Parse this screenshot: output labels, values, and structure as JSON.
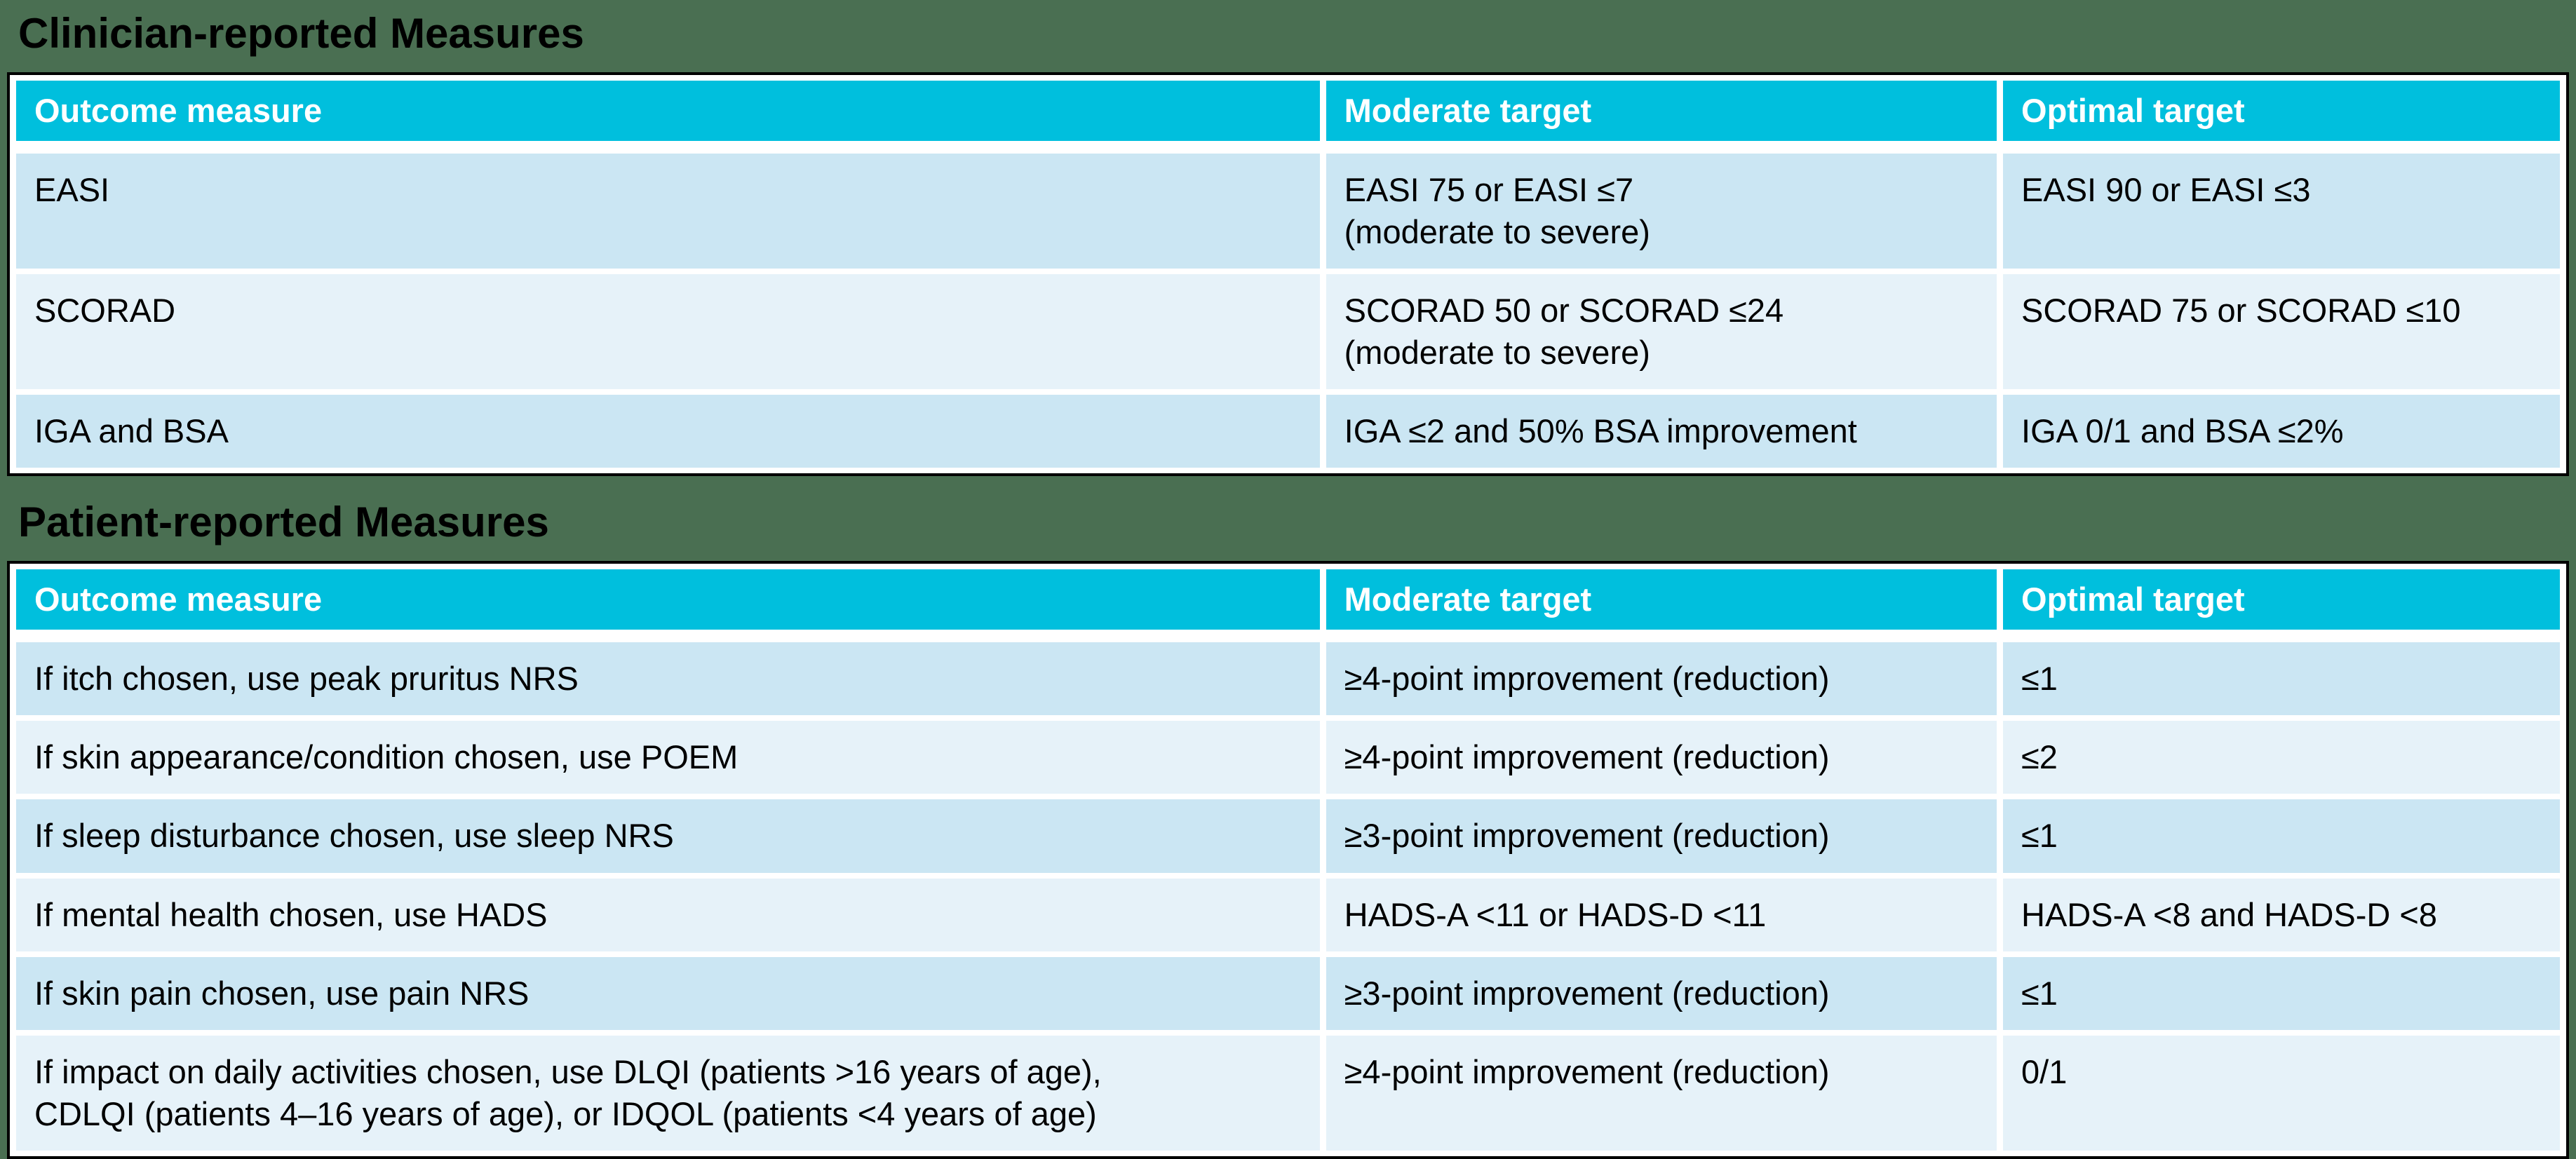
{
  "colors": {
    "page_background": "#4a6f52",
    "header_background": "#00bfdd",
    "header_text": "#ffffff",
    "row_odd_background": "#cbe6f3",
    "row_even_background": "#e6f2f9",
    "table_border": "#000000",
    "cell_gap": "#ffffff",
    "body_text": "#000000"
  },
  "sections": [
    {
      "title": "Clinician-reported Measures",
      "columns": [
        "Outcome measure",
        "Moderate target",
        "Optimal target"
      ],
      "rows": [
        {
          "outcome": "EASI",
          "moderate": "EASI 75 or EASI ≤7\n(moderate to severe)",
          "optimal": "EASI 90 or EASI ≤3"
        },
        {
          "outcome": "SCORAD",
          "moderate": "SCORAD 50 or SCORAD ≤24\n(moderate to severe)",
          "optimal": "SCORAD 75 or SCORAD ≤10"
        },
        {
          "outcome": "IGA and BSA",
          "moderate": "IGA ≤2 and 50% BSA improvement",
          "optimal": "IGA 0/1 and BSA ≤2%"
        }
      ]
    },
    {
      "title": "Patient-reported Measures",
      "columns": [
        "Outcome measure",
        "Moderate target",
        "Optimal target"
      ],
      "rows": [
        {
          "outcome": "If itch chosen, use peak pruritus NRS",
          "moderate": "≥4-point improvement (reduction)",
          "optimal": "≤1"
        },
        {
          "outcome": "If skin appearance/condition chosen, use POEM",
          "moderate": "≥4-point improvement (reduction)",
          "optimal": "≤2"
        },
        {
          "outcome": "If sleep disturbance chosen, use sleep NRS",
          "moderate": "≥3-point improvement (reduction)",
          "optimal": "≤1"
        },
        {
          "outcome": "If mental health chosen, use HADS",
          "moderate": "HADS-A <11 or HADS-D <11",
          "optimal": "HADS-A <8 and HADS-D <8"
        },
        {
          "outcome": "If skin pain chosen, use pain NRS",
          "moderate": "≥3-point improvement (reduction)",
          "optimal": "≤1"
        },
        {
          "outcome": "If impact on daily activities chosen, use DLQI (patients >16 years of age),\nCDLQI (patients 4–16 years of age), or IDQOL (patients <4 years of age)",
          "moderate": "≥4-point improvement (reduction)",
          "optimal": "0/1"
        }
      ]
    }
  ]
}
